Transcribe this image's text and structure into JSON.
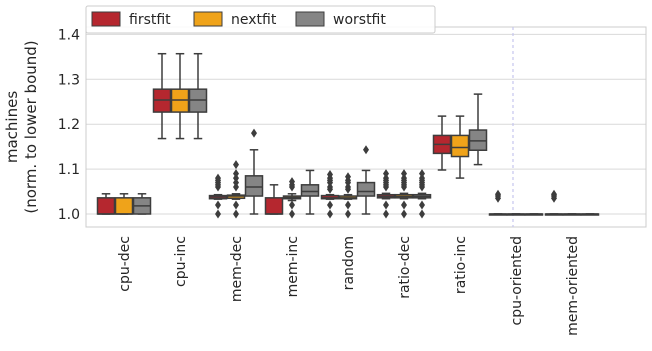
{
  "chart_data": {
    "type": "box",
    "categories": [
      "cpu-dec",
      "cpu-inc",
      "mem-dec",
      "mem-inc",
      "random",
      "ratio-dec",
      "ratio-inc",
      "cpu-oriented",
      "mem-oriented"
    ],
    "ylabel_line1": "machines",
    "ylabel_line2": "(norm. to lower bound)",
    "ylim": [
      0.97,
      1.45
    ],
    "yticks": [
      "1.0",
      "1.1",
      "1.2",
      "1.3",
      "1.4"
    ],
    "grid": true,
    "legend": {
      "placement": "top-left",
      "items": [
        "firstfit",
        "nextfit",
        "worstfit"
      ]
    },
    "colors": {
      "firstfit": "#b5272f",
      "nextfit": "#efa31a",
      "worstfit": "#858585",
      "divider": "#c6c6ee"
    },
    "series": [
      {
        "name": "firstfit",
        "boxes": [
          {
            "whislo": 1.0,
            "q1": 1.0,
            "med": 1.0,
            "q3": 1.036,
            "whishi": 1.045,
            "fliers": []
          },
          {
            "whislo": 1.168,
            "q1": 1.227,
            "med": 1.254,
            "q3": 1.278,
            "whishi": 1.357,
            "fliers": []
          },
          {
            "whislo": 1.033,
            "q1": 1.034,
            "med": 1.038,
            "q3": 1.041,
            "whishi": 1.043,
            "fliers": [
              1.0,
              1.02,
              1.06,
              1.065,
              1.07,
              1.075,
              1.08
            ]
          },
          {
            "whislo": 1.0,
            "q1": 1.0,
            "med": 1.0,
            "q3": 1.036,
            "whishi": 1.065,
            "fliers": []
          },
          {
            "whislo": 1.033,
            "q1": 1.034,
            "med": 1.036,
            "q3": 1.041,
            "whishi": 1.043,
            "fliers": [
              1.0,
              1.02,
              1.055,
              1.06,
              1.07,
              1.075,
              1.08,
              1.088
            ]
          },
          {
            "whislo": 1.034,
            "q1": 1.036,
            "med": 1.039,
            "q3": 1.043,
            "whishi": 1.046,
            "fliers": [
              1.0,
              1.02,
              1.06,
              1.065,
              1.07,
              1.075,
              1.08,
              1.09
            ]
          },
          {
            "whislo": 1.098,
            "q1": 1.135,
            "med": 1.155,
            "q3": 1.175,
            "whishi": 1.218,
            "fliers": []
          },
          {
            "whislo": 1.0,
            "q1": 1.0,
            "med": 1.0,
            "q3": 1.0,
            "whishi": 1.0,
            "fliers": [
              1.035,
              1.04,
              1.044
            ]
          },
          {
            "whislo": 1.0,
            "q1": 1.0,
            "med": 1.0,
            "q3": 1.0,
            "whishi": 1.0,
            "fliers": [
              1.035,
              1.04,
              1.044
            ]
          }
        ]
      },
      {
        "name": "nextfit",
        "boxes": [
          {
            "whislo": 1.0,
            "q1": 1.0,
            "med": 1.0,
            "q3": 1.036,
            "whishi": 1.045,
            "fliers": []
          },
          {
            "whislo": 1.168,
            "q1": 1.227,
            "med": 1.254,
            "q3": 1.278,
            "whishi": 1.357,
            "fliers": []
          },
          {
            "whislo": 1.033,
            "q1": 1.035,
            "med": 1.04,
            "q3": 1.042,
            "whishi": 1.045,
            "fliers": [
              1.0,
              1.02,
              1.06,
              1.07,
              1.08,
              1.09,
              1.11
            ]
          },
          {
            "whislo": 1.03,
            "q1": 1.034,
            "med": 1.037,
            "q3": 1.04,
            "whishi": 1.045,
            "fliers": [
              1.0,
              1.02,
              1.06,
              1.065,
              1.072
            ]
          },
          {
            "whislo": 1.033,
            "q1": 1.034,
            "med": 1.036,
            "q3": 1.04,
            "whishi": 1.043,
            "fliers": [
              1.0,
              1.02,
              1.055,
              1.06,
              1.07,
              1.075,
              1.083
            ]
          },
          {
            "whislo": 1.034,
            "q1": 1.036,
            "med": 1.039,
            "q3": 1.043,
            "whishi": 1.046,
            "fliers": [
              1.0,
              1.02,
              1.06,
              1.065,
              1.07,
              1.075,
              1.08,
              1.09
            ]
          },
          {
            "whislo": 1.08,
            "q1": 1.128,
            "med": 1.148,
            "q3": 1.175,
            "whishi": 1.218,
            "fliers": []
          },
          {
            "whislo": 1.0,
            "q1": 1.0,
            "med": 1.0,
            "q3": 1.0,
            "whishi": 1.0,
            "fliers": []
          },
          {
            "whislo": 1.0,
            "q1": 1.0,
            "med": 1.0,
            "q3": 1.0,
            "whishi": 1.0,
            "fliers": []
          }
        ]
      },
      {
        "name": "worstfit",
        "boxes": [
          {
            "whislo": 1.0,
            "q1": 1.0,
            "med": 1.018,
            "q3": 1.036,
            "whishi": 1.045,
            "fliers": []
          },
          {
            "whislo": 1.168,
            "q1": 1.227,
            "med": 1.254,
            "q3": 1.278,
            "whishi": 1.357,
            "fliers": []
          },
          {
            "whislo": 1.0,
            "q1": 1.04,
            "med": 1.06,
            "q3": 1.085,
            "whishi": 1.143,
            "fliers": [
              1.18
            ]
          },
          {
            "whislo": 1.0,
            "q1": 1.04,
            "med": 1.05,
            "q3": 1.065,
            "whishi": 1.097,
            "fliers": []
          },
          {
            "whislo": 1.0,
            "q1": 1.04,
            "med": 1.05,
            "q3": 1.07,
            "whishi": 1.097,
            "fliers": [
              1.143
            ]
          },
          {
            "whislo": 1.034,
            "q1": 1.036,
            "med": 1.039,
            "q3": 1.043,
            "whishi": 1.046,
            "fliers": [
              1.0,
              1.02,
              1.06,
              1.065,
              1.07,
              1.075,
              1.08,
              1.09
            ]
          },
          {
            "whislo": 1.11,
            "q1": 1.142,
            "med": 1.163,
            "q3": 1.187,
            "whishi": 1.267,
            "fliers": []
          },
          {
            "whislo": 1.0,
            "q1": 1.0,
            "med": 1.0,
            "q3": 1.0,
            "whishi": 1.0,
            "fliers": []
          },
          {
            "whislo": 1.0,
            "q1": 1.0,
            "med": 1.0,
            "q3": 1.0,
            "whishi": 1.0,
            "fliers": []
          }
        ]
      }
    ]
  }
}
